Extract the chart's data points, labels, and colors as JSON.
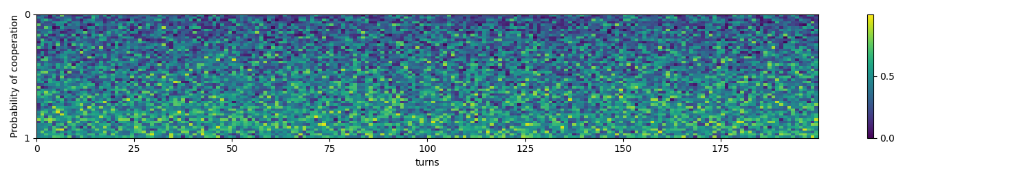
{
  "n_rows": 50,
  "n_cols": 200,
  "cmap": "viridis",
  "vmin": 0.0,
  "vmax": 1.0,
  "xlabel": "turns",
  "ylabel": "Probability of cooperation",
  "ytick_labels": [
    "0",
    "1"
  ],
  "xticks": [
    0,
    25,
    50,
    75,
    100,
    125,
    150,
    175
  ],
  "colorbar_ticks": [
    0.0,
    0.5
  ],
  "colorbar_tick_labels": [
    "0.0",
    "0.5"
  ],
  "figsize": [
    14.89,
    2.59
  ],
  "dpi": 100,
  "aspect": "auto",
  "seed": 12345
}
